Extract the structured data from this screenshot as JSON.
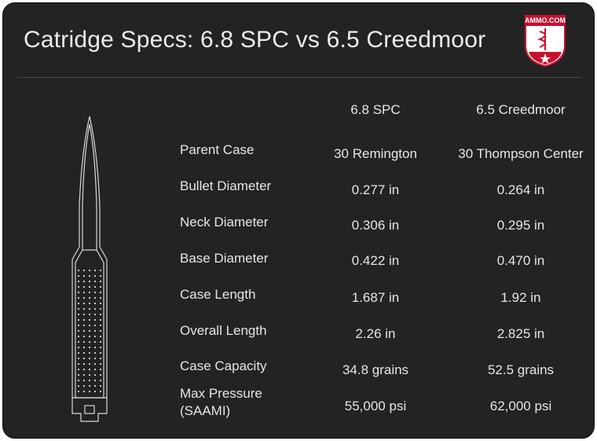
{
  "title": "Catridge Specs: 6.8 SPC vs 6.5 Creedmoor",
  "logo": {
    "text": "AMMO.COM",
    "icon": "shield-logo-icon",
    "colors": {
      "red": "#c8102e",
      "white": "#ffffff"
    }
  },
  "columns": [
    "6.8 SPC",
    "6.5 Creedmoor"
  ],
  "rows": [
    {
      "label": "Parent Case",
      "spc": "30 Remington",
      "creedmoor": "30 Thompson Center"
    },
    {
      "label": "Bullet Diameter",
      "spc": "0.277 in",
      "creedmoor": "0.264 in"
    },
    {
      "label": "Neck Diameter",
      "spc": "0.306 in",
      "creedmoor": "0.295 in"
    },
    {
      "label": "Base Diameter",
      "spc": "0.422 in",
      "creedmoor": "0.470 in"
    },
    {
      "label": "Case Length",
      "spc": "1.687 in",
      "creedmoor": "1.92 in"
    },
    {
      "label": "Overall Length",
      "spc": "2.26 in",
      "creedmoor": "2.825 in"
    },
    {
      "label": "Case Capacity",
      "spc": "34.8 grains",
      "creedmoor": "52.5 grains"
    },
    {
      "label": "Max Pressure",
      "label2": "(SAAMI)",
      "spc": "55,000 psi",
      "creedmoor": "62,000 psi"
    }
  ],
  "colors": {
    "background": "#232323",
    "text": "#e6e6e6",
    "outline": "#d8d8d8"
  },
  "illustration": "cartridge-outline-icon"
}
